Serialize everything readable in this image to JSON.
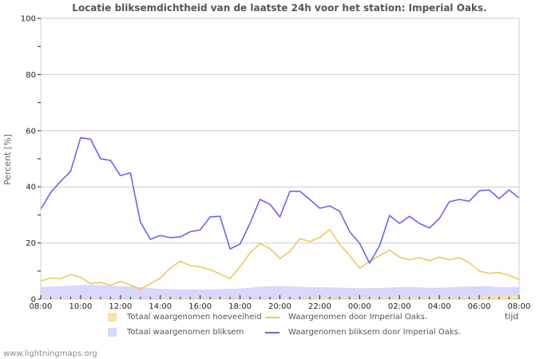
{
  "chart_data": {
    "type": "line",
    "title": "Locatie bliksemdichtheid van de laatste 24h voor het station: Imperial Oaks.",
    "xlabel": "tijd",
    "ylabel": "Percent   [%]",
    "ylim": [
      0,
      100
    ],
    "yticks": [
      0,
      20,
      40,
      60,
      80,
      100
    ],
    "xticks": [
      "08:00",
      "10:00",
      "12:00",
      "14:00",
      "16:00",
      "18:00",
      "20:00",
      "22:00",
      "00:00",
      "02:00",
      "04:00",
      "06:00",
      "08:00"
    ],
    "grid": true,
    "legend_position": "bottom",
    "x": [
      "08:00",
      "08:30",
      "09:00",
      "09:30",
      "10:00",
      "10:30",
      "11:00",
      "11:30",
      "12:00",
      "12:30",
      "13:00",
      "13:30",
      "14:00",
      "14:30",
      "15:00",
      "15:30",
      "16:00",
      "16:30",
      "17:00",
      "17:30",
      "18:00",
      "18:30",
      "19:00",
      "19:30",
      "20:00",
      "20:30",
      "21:00",
      "21:30",
      "22:00",
      "22:30",
      "23:00",
      "23:30",
      "00:00",
      "00:30",
      "01:00",
      "01:30",
      "02:00",
      "02:30",
      "03:00",
      "03:30",
      "04:00",
      "04:30",
      "05:00",
      "05:30",
      "06:00",
      "06:30",
      "07:00",
      "07:30",
      "08:00"
    ],
    "series": [
      {
        "name": "Totaal waargenomen hoeveelheid",
        "kind": "area",
        "color": "#fddfa8",
        "values": [
          0.3,
          0.3,
          0.3,
          0.3,
          0.3,
          0.3,
          0.3,
          0.3,
          0.3,
          0.3,
          0.3,
          0.3,
          0.3,
          0.3,
          0.3,
          0.3,
          0.3,
          0.3,
          0.3,
          0.3,
          0.3,
          0.3,
          0.3,
          0.3,
          0.3,
          0.3,
          0.4,
          0.5,
          0.5,
          0.5,
          0.5,
          0.5,
          0.5,
          0.5,
          0.5,
          0.6,
          0.6,
          0.6,
          0.6,
          0.6,
          0.6,
          0.6,
          0.7,
          0.8,
          0.8,
          1.0,
          1.2,
          1.2,
          1.5
        ]
      },
      {
        "name": "Totaal waargenomen bliksem",
        "kind": "area",
        "color": "#d8d8fa",
        "values": [
          4.3,
          4.5,
          4.6,
          4.8,
          5.0,
          5.1,
          4.9,
          4.8,
          4.6,
          4.5,
          4.3,
          3.9,
          3.7,
          3.6,
          3.5,
          3.5,
          3.4,
          3.5,
          3.6,
          3.7,
          3.8,
          4.1,
          4.4,
          4.6,
          4.6,
          4.6,
          4.4,
          4.3,
          4.2,
          4.2,
          4.1,
          4.0,
          3.9,
          3.9,
          4.0,
          4.1,
          4.3,
          4.4,
          4.2,
          4.0,
          4.1,
          4.2,
          4.4,
          4.5,
          4.6,
          4.6,
          4.3,
          4.3,
          4.4
        ]
      },
      {
        "name": "Waargenomen door Imperial Oaks.",
        "kind": "line",
        "color": "#f5c55a",
        "values": [
          6.5,
          7.5,
          7.3,
          8.8,
          7.8,
          5.5,
          6.0,
          4.9,
          6.3,
          5.0,
          3.6,
          5.5,
          7.5,
          11.0,
          13.5,
          12.0,
          11.5,
          10.5,
          9.0,
          7.3,
          11.5,
          16.5,
          19.8,
          18.0,
          14.5,
          17.0,
          21.5,
          20.5,
          22.0,
          24.8,
          19.5,
          15.5,
          11.0,
          13.5,
          15.5,
          17.5,
          15.0,
          14.0,
          14.8,
          13.7,
          15.0,
          14.0,
          14.8,
          13.0,
          10.0,
          9.2,
          9.5,
          8.5,
          7.0
        ]
      },
      {
        "name": "Waargenomen bliksem door Imperial Oaks.",
        "kind": "line",
        "color": "#6666ee",
        "values": [
          32.0,
          38.0,
          42.0,
          45.5,
          57.5,
          57.0,
          50.0,
          49.4,
          44.0,
          45.0,
          27.5,
          21.3,
          22.7,
          21.9,
          22.2,
          24.0,
          24.7,
          29.3,
          29.5,
          17.9,
          19.6,
          27.0,
          35.5,
          33.8,
          29.3,
          38.4,
          38.4,
          35.5,
          32.4,
          33.2,
          31.3,
          24.0,
          19.9,
          12.8,
          19.0,
          29.8,
          27.0,
          29.5,
          27.0,
          25.3,
          28.7,
          34.7,
          35.5,
          34.9,
          38.6,
          38.9,
          35.8,
          38.9,
          36.0
        ]
      }
    ]
  },
  "legend": {
    "items": [
      {
        "label": "Totaal waargenomen hoeveelheid",
        "color": "#fddfa8",
        "kind": "area"
      },
      {
        "label": "Waargenomen door Imperial Oaks.",
        "color": "#f5c55a",
        "kind": "line"
      },
      {
        "label": "Totaal waargenomen bliksem",
        "color": "#d8d8fa",
        "kind": "area"
      },
      {
        "label": "Waargenomen bliksem door Imperial Oaks.",
        "color": "#6666ee",
        "kind": "line"
      }
    ]
  },
  "footer": "www.lightningmaps.org"
}
